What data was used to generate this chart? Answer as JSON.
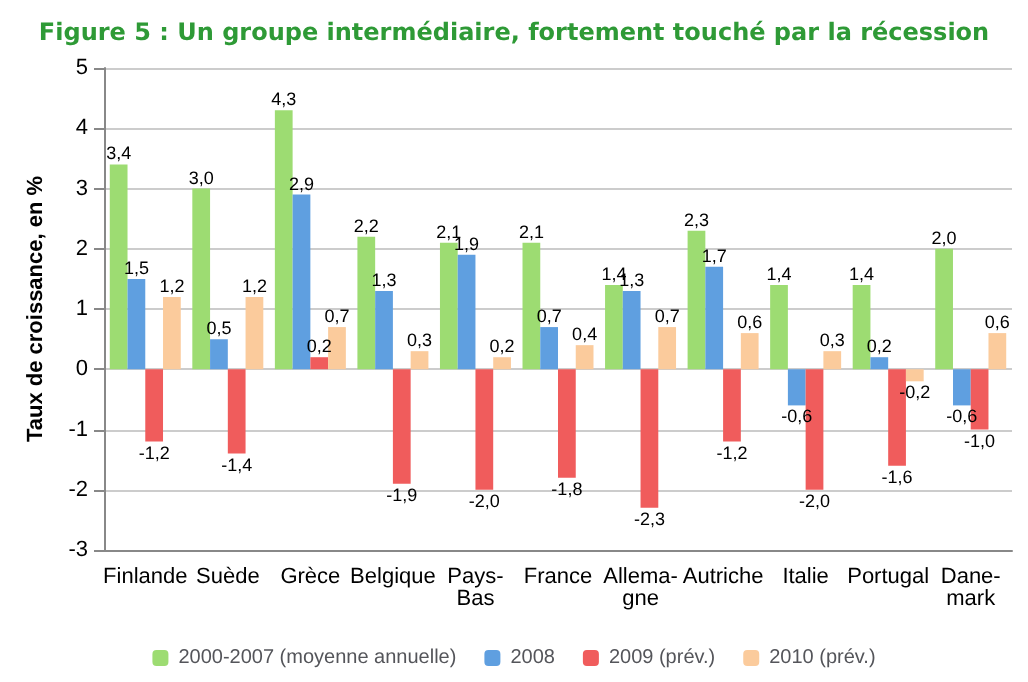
{
  "chart_data": {
    "type": "bar",
    "title": "Figure 5 : Un groupe intermédiaire, fortement touché par la récession",
    "ylabel": "Taux de croissance, en %",
    "categories": [
      "Finlande",
      "Suède",
      "Grèce",
      "Belgique",
      "Pays-Bas",
      "France",
      "Allema-gne",
      "Autriche",
      "Italie",
      "Portugal",
      "Dane-mark"
    ],
    "series": [
      {
        "name": "2000-2007 (moyenne annuelle)",
        "color": "#9ddc72",
        "values": [
          3.4,
          3.0,
          4.3,
          2.2,
          2.1,
          2.1,
          1.4,
          2.3,
          1.4,
          1.4,
          2.0
        ],
        "value_labels": [
          "3,4",
          "3,0",
          "4,3",
          "2,2",
          "2,1",
          "2,1",
          "1,4",
          "2,3",
          "1,4",
          "1,4",
          "2,0"
        ]
      },
      {
        "name": "2008",
        "color": "#5f9fe0",
        "values": [
          1.5,
          0.5,
          2.9,
          1.3,
          1.9,
          0.7,
          1.3,
          1.7,
          -0.6,
          0.2,
          -0.6
        ],
        "value_labels": [
          "1,5",
          "0,5",
          "2,9",
          "1,3",
          "1,9",
          "0,7",
          "1,3",
          "1,7",
          "-0,6",
          "0,2",
          "-0,6"
        ]
      },
      {
        "name": "2009 (prév.)",
        "color": "#f05c5c",
        "values": [
          -1.2,
          -1.4,
          0.2,
          -1.9,
          -2.0,
          -1.8,
          -2.3,
          -1.2,
          -2.0,
          -1.6,
          -1.0
        ],
        "value_labels": [
          "-1,2",
          "-1,4",
          "0,2",
          "-1,9",
          "-2,0",
          "-1,8",
          "-2,3",
          "-1,2",
          "-2,0",
          "-1,6",
          "-1,0"
        ]
      },
      {
        "name": "2010 (prév.)",
        "color": "#fbcb9c",
        "values": [
          1.2,
          1.2,
          0.7,
          0.3,
          0.2,
          0.4,
          0.7,
          0.6,
          0.3,
          -0.2,
          0.6
        ],
        "value_labels": [
          "1,2",
          "1,2",
          "0,7",
          "0,3",
          "0,2",
          "0,4",
          "0,7",
          "0,6",
          "0,3",
          "-0,2",
          "0,6"
        ]
      }
    ],
    "ylim": [
      -3,
      5
    ],
    "yticks": [
      -3,
      -2,
      -1,
      0,
      1,
      2,
      3,
      4,
      5
    ],
    "grid": "y",
    "legend": "bottom"
  }
}
